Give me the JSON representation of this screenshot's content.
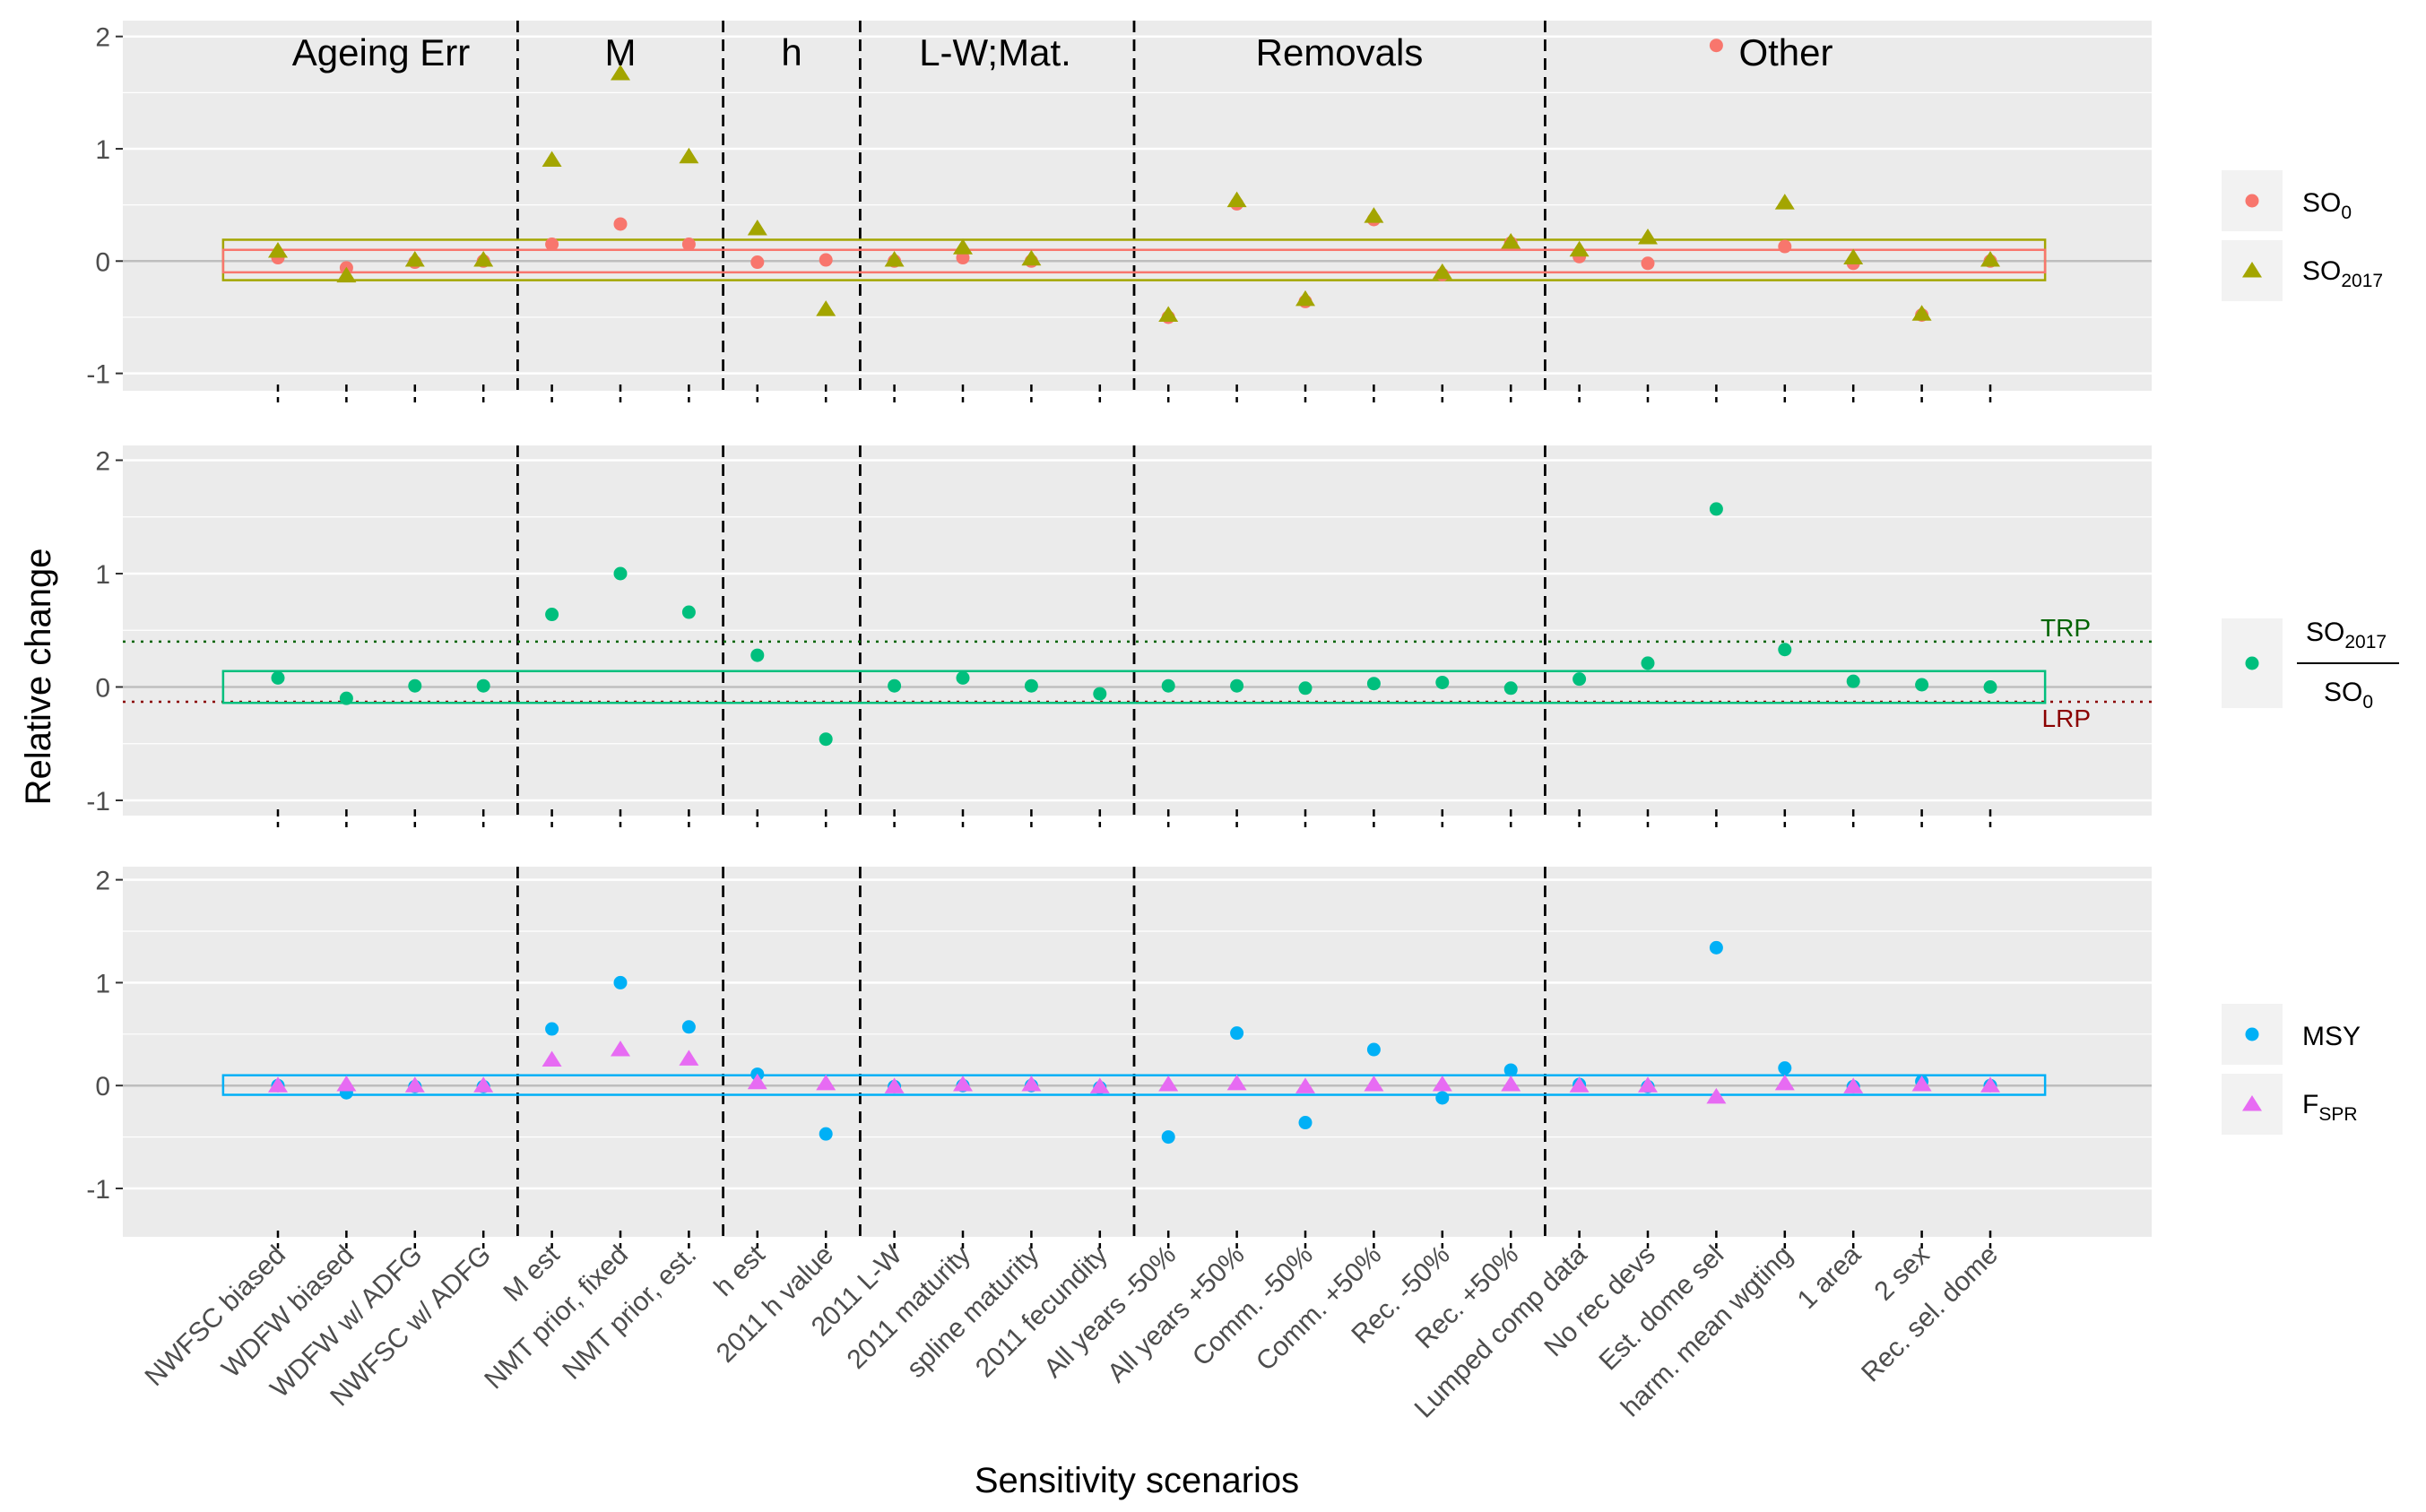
{
  "chart_data": {
    "type": "scatter",
    "xlabel": "Sensitivity scenarios",
    "ylabel": "Relative change",
    "ylim": [
      -1.15,
      2.15
    ],
    "yticks": [
      "-1",
      "0",
      "1",
      "2"
    ],
    "categories": [
      "NWFSC biased",
      "WDFW biased",
      "WDFW w/ ADFG",
      "NWFSC w/ ADFG",
      "M est",
      "NMT prior, fixed",
      "NMT prior, est.",
      "h est",
      "2011 h value",
      "2011 L-W",
      "2011 maturity",
      "spline maturity",
      "2011 fecundity",
      "All years -50%",
      "All years +50%",
      "Comm. -50%",
      "Comm. +50%",
      "Rec. -50%",
      "Rec. +50%",
      "Lumped comp data",
      "No rec devs",
      "Est. dome sel",
      "harm. mean wgting",
      "1 area",
      "2 sex",
      "Rec. sel. dome"
    ],
    "groups": [
      {
        "label": "Ageing Err"
      },
      {
        "label": "M"
      },
      {
        "label": "h"
      },
      {
        "label": "L-W;Mat."
      },
      {
        "label": "Removals"
      },
      {
        "label": "Other"
      }
    ],
    "panels": [
      {
        "series": [
          {
            "name": "SO",
            "sub": "0",
            "color": "#F8766D",
            "shape": "circle",
            "values": [
              0.03,
              -0.06,
              -0.01,
              0.0,
              0.15,
              0.33,
              0.15,
              -0.01,
              0.01,
              0.0,
              0.03,
              0.0,
              null,
              -0.5,
              0.51,
              -0.36,
              0.37,
              -0.12,
              0.16,
              0.04,
              -0.02,
              1.92,
              0.13,
              -0.02,
              -0.48,
              0.0
            ]
          },
          {
            "name": "SO",
            "sub": "2017",
            "color": "#A3A500",
            "shape": "triangle",
            "values": [
              0.09,
              -0.13,
              0.01,
              0.01,
              0.9,
              1.67,
              0.93,
              0.29,
              -0.43,
              0.01,
              0.12,
              0.02,
              null,
              -0.48,
              0.54,
              -0.34,
              0.4,
              -0.1,
              0.17,
              0.1,
              0.21,
              null,
              0.52,
              0.03,
              -0.47,
              0.01
            ]
          }
        ],
        "bands": [
          {
            "color": "#A3A500",
            "low": -0.17,
            "high": 0.19
          },
          {
            "color": "#F8766D",
            "low": -0.1,
            "high": 0.1
          }
        ]
      },
      {
        "series": [
          {
            "name": "SO",
            "sub": "2017",
            "den": "SO",
            "den_sub": "0",
            "color": "#00BF7D",
            "shape": "circle",
            "values": [
              0.08,
              -0.1,
              0.01,
              0.01,
              0.64,
              1.0,
              0.66,
              0.28,
              -0.46,
              0.01,
              0.08,
              0.01,
              -0.06,
              0.01,
              0.01,
              -0.01,
              0.03,
              0.04,
              -0.01,
              0.07,
              0.21,
              1.57,
              0.33,
              0.05,
              0.02,
              0.0
            ]
          }
        ],
        "bands": [
          {
            "color": "#00BF7D",
            "low": -0.14,
            "high": 0.14
          }
        ],
        "ref_lines": [
          {
            "label": "TRP",
            "value": 0.4,
            "color": "#006400"
          },
          {
            "label": "LRP",
            "value": -0.13,
            "color": "#8B0000"
          }
        ]
      },
      {
        "series": [
          {
            "name": "MSY",
            "sub": "",
            "color": "#00B0F6",
            "shape": "circle",
            "values": [
              0.0,
              -0.07,
              -0.01,
              -0.01,
              0.55,
              1.0,
              0.57,
              0.11,
              -0.47,
              -0.01,
              0.0,
              0.0,
              -0.02,
              -0.5,
              0.51,
              -0.36,
              0.35,
              -0.12,
              0.15,
              0.01,
              -0.01,
              1.34,
              0.17,
              -0.01,
              0.04,
              0.0
            ]
          },
          {
            "name": "F",
            "sub": "SPR",
            "color": "#E76BF3",
            "shape": "triangle",
            "values": [
              0.0,
              0.01,
              0.0,
              0.0,
              0.25,
              0.35,
              0.26,
              0.03,
              0.02,
              -0.01,
              0.01,
              0.01,
              -0.01,
              0.01,
              0.02,
              -0.01,
              0.01,
              0.01,
              0.01,
              0.0,
              0.0,
              -0.11,
              0.02,
              -0.01,
              0.01,
              0.0
            ]
          }
        ],
        "bands": [
          {
            "color": "#00B0F6",
            "low": -0.09,
            "high": 0.1
          }
        ]
      }
    ]
  }
}
